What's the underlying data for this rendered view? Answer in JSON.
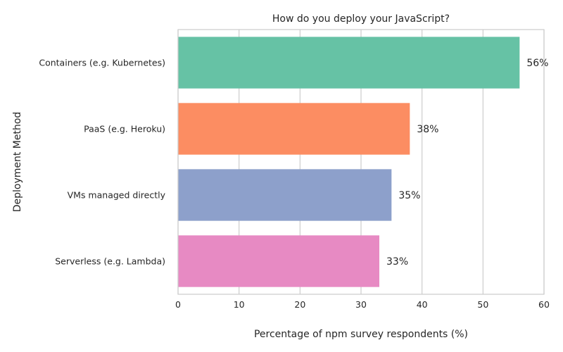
{
  "chart_data": {
    "type": "bar",
    "orientation": "horizontal",
    "title": "How do you deploy your JavaScript?",
    "xlabel": "Percentage of npm survey respondents (%)",
    "ylabel": "Deployment Method",
    "categories": [
      "Containers (e.g. Kubernetes)",
      "PaaS (e.g. Heroku)",
      "VMs managed directly",
      "Serverless (e.g. Lambda)"
    ],
    "values": [
      56,
      38,
      35,
      33
    ],
    "data_labels": [
      "56%",
      "38%",
      "35%",
      "33%"
    ],
    "colors": [
      "#66c2a5",
      "#fc8d62",
      "#8da0cb",
      "#e78ac3"
    ],
    "xlim": [
      0,
      60
    ],
    "xticks": [
      0,
      10,
      20,
      30,
      40,
      50,
      60
    ],
    "xtick_labels": [
      "0",
      "10",
      "20",
      "30",
      "40",
      "50",
      "60"
    ],
    "grid": "vertical"
  }
}
